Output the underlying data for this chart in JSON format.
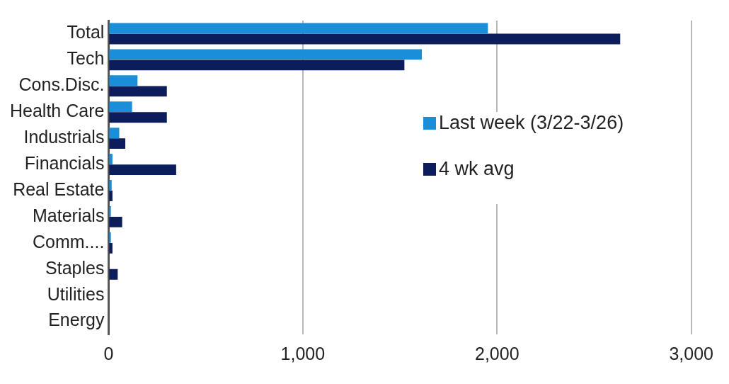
{
  "chart_data": {
    "type": "bar",
    "orientation": "horizontal",
    "categories": [
      "Total",
      "Tech",
      "Cons.Disc.",
      "Health Care",
      "Industrials",
      "Financials",
      "Real Estate",
      "Materials",
      "Comm....",
      "Staples",
      "Utilities",
      "Energy"
    ],
    "series": [
      {
        "name": "Last week (3/22-3/26)",
        "color": "#1a8fd8",
        "values": [
          1953,
          1613,
          149,
          121,
          55,
          20,
          16,
          12,
          12,
          null,
          null,
          null
        ]
      },
      {
        "name": "4 wk avg",
        "color": "#0b1d5a",
        "values": [
          2634,
          1523,
          300,
          300,
          86,
          348,
          20,
          70,
          20,
          47,
          null,
          null
        ]
      }
    ],
    "xlim": [
      0,
      3000
    ],
    "xticks": [
      {
        "value": 0,
        "label": "0"
      },
      {
        "value": 1000,
        "label": "1,000"
      },
      {
        "value": 2000,
        "label": "2,000"
      },
      {
        "value": 3000,
        "label": "3,000"
      }
    ],
    "grid": "x",
    "legend": "right"
  }
}
